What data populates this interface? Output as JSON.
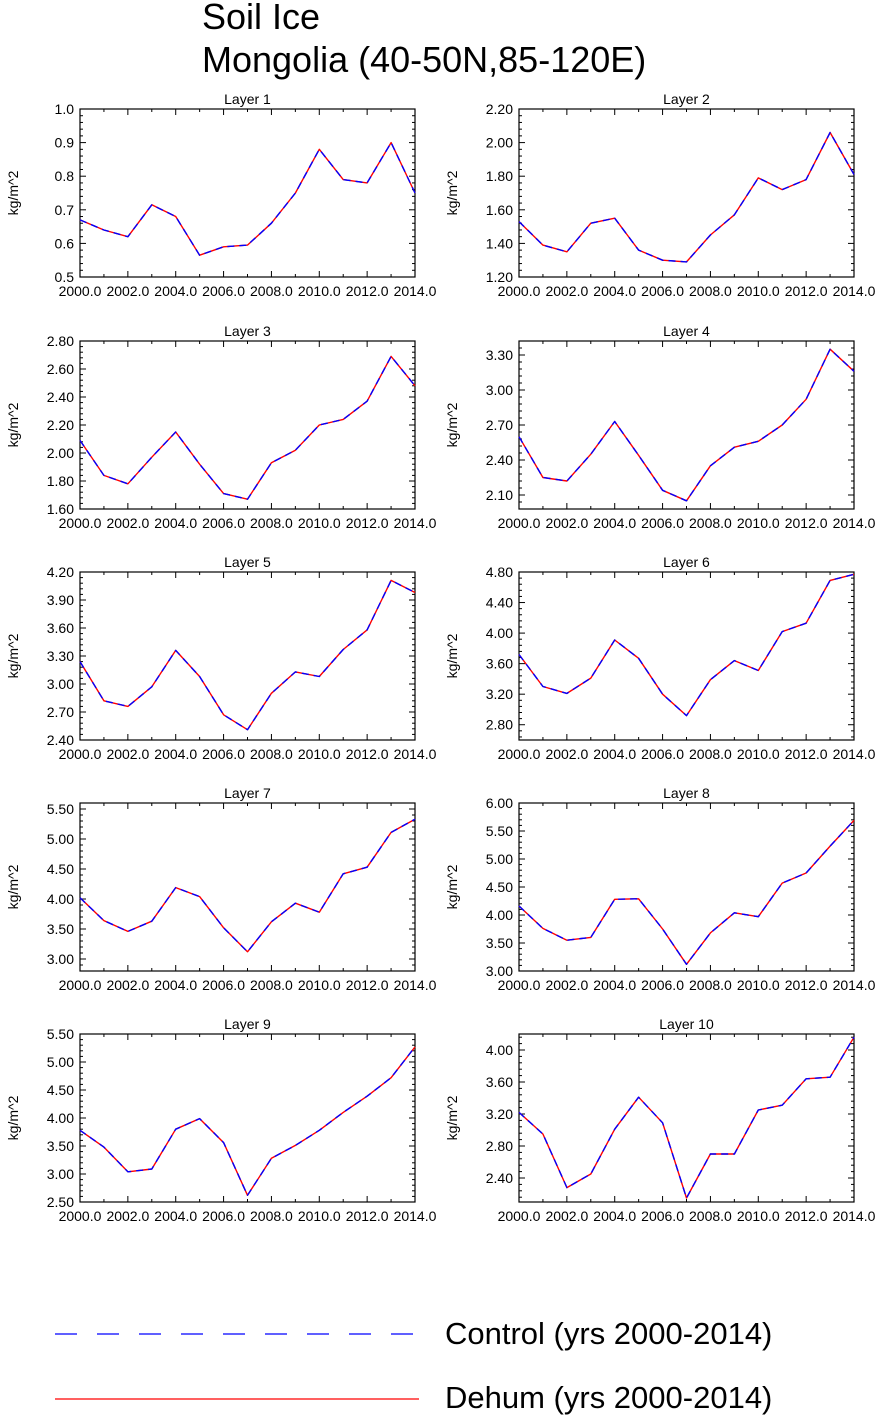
{
  "title": "Soil Ice",
  "subtitle": "Mongolia (40-50N,85-120E)",
  "legend": [
    {
      "label": "Control (yrs 2000-2014)",
      "color": "#0000ff",
      "style": "dashed"
    },
    {
      "label": "Dehum (yrs 2000-2014)",
      "color": "#ff0000",
      "style": "solid"
    }
  ],
  "chart_data": [
    {
      "type": "line",
      "title": "Layer 1",
      "ylabel": "kg/m^2",
      "x": [
        2000,
        2001,
        2002,
        2003,
        2004,
        2005,
        2006,
        2007,
        2008,
        2009,
        2010,
        2011,
        2012,
        2013,
        2014
      ],
      "xticks": [
        "2000.0",
        "2002.0",
        "2004.0",
        "2006.0",
        "2008.0",
        "2010.0",
        "2012.0",
        "2014.0"
      ],
      "ylim": [
        0.5,
        1.0
      ],
      "yticks": [
        "0.5",
        "0.6",
        "0.7",
        "0.8",
        "0.9",
        "1.0"
      ],
      "series": [
        {
          "name": "Control (yrs 2000-2014)",
          "values": [
            0.67,
            0.64,
            0.62,
            0.715,
            0.68,
            0.565,
            0.59,
            0.595,
            0.66,
            0.75,
            0.88,
            0.79,
            0.78,
            0.9,
            0.75
          ]
        },
        {
          "name": "Dehum (yrs 2000-2014)",
          "values": [
            0.67,
            0.64,
            0.62,
            0.715,
            0.68,
            0.565,
            0.59,
            0.595,
            0.66,
            0.75,
            0.88,
            0.79,
            0.78,
            0.9,
            0.75
          ]
        }
      ]
    },
    {
      "type": "line",
      "title": "Layer 2",
      "ylabel": "kg/m^2",
      "x": [
        2000,
        2001,
        2002,
        2003,
        2004,
        2005,
        2006,
        2007,
        2008,
        2009,
        2010,
        2011,
        2012,
        2013,
        2014
      ],
      "xticks": [
        "2000.0",
        "2002.0",
        "2004.0",
        "2006.0",
        "2008.0",
        "2010.0",
        "2012.0",
        "2014.0"
      ],
      "ylim": [
        1.2,
        2.2
      ],
      "yticks": [
        "1.20",
        "1.40",
        "1.60",
        "1.80",
        "2.00",
        "2.20"
      ],
      "series": [
        {
          "name": "Control (yrs 2000-2014)",
          "values": [
            1.53,
            1.39,
            1.35,
            1.52,
            1.55,
            1.36,
            1.3,
            1.29,
            1.45,
            1.57,
            1.79,
            1.72,
            1.78,
            2.06,
            1.81
          ]
        },
        {
          "name": "Dehum (yrs 2000-2014)",
          "values": [
            1.53,
            1.39,
            1.35,
            1.52,
            1.55,
            1.36,
            1.3,
            1.29,
            1.45,
            1.57,
            1.79,
            1.72,
            1.78,
            2.06,
            1.81
          ]
        }
      ]
    },
    {
      "type": "line",
      "title": "Layer 3",
      "ylabel": "kg/m^2",
      "x": [
        2000,
        2001,
        2002,
        2003,
        2004,
        2005,
        2006,
        2007,
        2008,
        2009,
        2010,
        2011,
        2012,
        2013,
        2014
      ],
      "xticks": [
        "2000.0",
        "2002.0",
        "2004.0",
        "2006.0",
        "2008.0",
        "2010.0",
        "2012.0",
        "2014.0"
      ],
      "ylim": [
        1.6,
        2.8
      ],
      "yticks": [
        "1.60",
        "1.80",
        "2.00",
        "2.20",
        "2.40",
        "2.60",
        "2.80"
      ],
      "series": [
        {
          "name": "Control (yrs 2000-2014)",
          "values": [
            2.09,
            1.84,
            1.78,
            1.97,
            2.15,
            1.92,
            1.71,
            1.67,
            1.93,
            2.02,
            2.2,
            2.24,
            2.37,
            2.69,
            2.48
          ]
        },
        {
          "name": "Dehum (yrs 2000-2014)",
          "values": [
            2.09,
            1.84,
            1.78,
            1.97,
            2.15,
            1.92,
            1.71,
            1.67,
            1.93,
            2.02,
            2.2,
            2.24,
            2.37,
            2.69,
            2.48
          ]
        }
      ]
    },
    {
      "type": "line",
      "title": "Layer 4",
      "ylabel": "kg/m^2",
      "x": [
        2000,
        2001,
        2002,
        2003,
        2004,
        2005,
        2006,
        2007,
        2008,
        2009,
        2010,
        2011,
        2012,
        2013,
        2014
      ],
      "xticks": [
        "2000.0",
        "2002.0",
        "2004.0",
        "2006.0",
        "2008.0",
        "2010.0",
        "2012.0",
        "2014.0"
      ],
      "ylim": [
        1.98,
        3.42
      ],
      "yticks": [
        "2.10",
        "2.40",
        "2.70",
        "3.00",
        "3.30"
      ],
      "series": [
        {
          "name": "Control (yrs 2000-2014)",
          "values": [
            2.6,
            2.25,
            2.22,
            2.45,
            2.73,
            2.44,
            2.14,
            2.05,
            2.35,
            2.51,
            2.56,
            2.7,
            2.92,
            3.35,
            3.16
          ]
        },
        {
          "name": "Dehum (yrs 2000-2014)",
          "values": [
            2.6,
            2.25,
            2.22,
            2.45,
            2.73,
            2.44,
            2.14,
            2.05,
            2.35,
            2.51,
            2.56,
            2.7,
            2.92,
            3.35,
            3.16
          ]
        }
      ]
    },
    {
      "type": "line",
      "title": "Layer 5",
      "ylabel": "kg/m^2",
      "x": [
        2000,
        2001,
        2002,
        2003,
        2004,
        2005,
        2006,
        2007,
        2008,
        2009,
        2010,
        2011,
        2012,
        2013,
        2014
      ],
      "xticks": [
        "2000.0",
        "2002.0",
        "2004.0",
        "2006.0",
        "2008.0",
        "2010.0",
        "2012.0",
        "2014.0"
      ],
      "ylim": [
        2.4,
        4.2
      ],
      "yticks": [
        "2.40",
        "2.70",
        "3.00",
        "3.30",
        "3.60",
        "3.90",
        "4.20"
      ],
      "series": [
        {
          "name": "Control (yrs 2000-2014)",
          "values": [
            3.24,
            2.82,
            2.76,
            2.97,
            3.36,
            3.08,
            2.67,
            2.51,
            2.9,
            3.13,
            3.08,
            3.37,
            3.58,
            4.11,
            3.98
          ]
        },
        {
          "name": "Dehum (yrs 2000-2014)",
          "values": [
            3.24,
            2.82,
            2.76,
            2.97,
            3.36,
            3.08,
            2.67,
            2.51,
            2.9,
            3.13,
            3.08,
            3.37,
            3.58,
            4.11,
            3.98
          ]
        }
      ]
    },
    {
      "type": "line",
      "title": "Layer 6",
      "ylabel": "kg/m^2",
      "x": [
        2000,
        2001,
        2002,
        2003,
        2004,
        2005,
        2006,
        2007,
        2008,
        2009,
        2010,
        2011,
        2012,
        2013,
        2014
      ],
      "xticks": [
        "2000.0",
        "2002.0",
        "2004.0",
        "2006.0",
        "2008.0",
        "2010.0",
        "2012.0",
        "2014.0"
      ],
      "ylim": [
        2.6,
        4.8
      ],
      "yticks": [
        "2.80",
        "3.20",
        "3.60",
        "4.00",
        "4.40",
        "4.80"
      ],
      "series": [
        {
          "name": "Control (yrs 2000-2014)",
          "values": [
            3.72,
            3.3,
            3.21,
            3.41,
            3.91,
            3.67,
            3.2,
            2.92,
            3.39,
            3.64,
            3.51,
            4.02,
            4.13,
            4.69,
            4.77
          ]
        },
        {
          "name": "Dehum (yrs 2000-2014)",
          "values": [
            3.72,
            3.3,
            3.21,
            3.41,
            3.91,
            3.67,
            3.2,
            2.92,
            3.39,
            3.64,
            3.51,
            4.02,
            4.13,
            4.69,
            4.77
          ]
        }
      ]
    },
    {
      "type": "line",
      "title": "Layer 7",
      "ylabel": "kg/m^2",
      "x": [
        2000,
        2001,
        2002,
        2003,
        2004,
        2005,
        2006,
        2007,
        2008,
        2009,
        2010,
        2011,
        2012,
        2013,
        2014
      ],
      "xticks": [
        "2000.0",
        "2002.0",
        "2004.0",
        "2006.0",
        "2008.0",
        "2010.0",
        "2012.0",
        "2014.0"
      ],
      "ylim": [
        2.8,
        5.6
      ],
      "yticks": [
        "3.00",
        "3.50",
        "4.00",
        "4.50",
        "5.00",
        "5.50"
      ],
      "series": [
        {
          "name": "Control (yrs 2000-2014)",
          "values": [
            4.02,
            3.64,
            3.46,
            3.63,
            4.19,
            4.04,
            3.52,
            3.12,
            3.62,
            3.93,
            3.78,
            4.42,
            4.53,
            5.11,
            5.33
          ]
        },
        {
          "name": "Dehum (yrs 2000-2014)",
          "values": [
            4.02,
            3.64,
            3.46,
            3.63,
            4.19,
            4.04,
            3.52,
            3.12,
            3.62,
            3.93,
            3.78,
            4.42,
            4.53,
            5.11,
            5.33
          ]
        }
      ]
    },
    {
      "type": "line",
      "title": "Layer 8",
      "ylabel": "kg/m^2",
      "x": [
        2000,
        2001,
        2002,
        2003,
        2004,
        2005,
        2006,
        2007,
        2008,
        2009,
        2010,
        2011,
        2012,
        2013,
        2014
      ],
      "xticks": [
        "2000.0",
        "2002.0",
        "2004.0",
        "2006.0",
        "2008.0",
        "2010.0",
        "2012.0",
        "2014.0"
      ],
      "ylim": [
        3.0,
        6.0
      ],
      "yticks": [
        "3.00",
        "3.50",
        "4.00",
        "4.50",
        "5.00",
        "5.50",
        "6.00"
      ],
      "series": [
        {
          "name": "Control (yrs 2000-2014)",
          "values": [
            4.16,
            3.76,
            3.55,
            3.6,
            4.28,
            4.29,
            3.75,
            3.12,
            3.68,
            4.04,
            3.97,
            4.57,
            4.75,
            5.23,
            5.69
          ]
        },
        {
          "name": "Dehum (yrs 2000-2014)",
          "values": [
            4.16,
            3.76,
            3.55,
            3.6,
            4.28,
            4.29,
            3.75,
            3.12,
            3.68,
            4.04,
            3.97,
            4.57,
            4.75,
            5.23,
            5.69
          ]
        }
      ]
    },
    {
      "type": "line",
      "title": "Layer 9",
      "ylabel": "kg/m^2",
      "x": [
        2000,
        2001,
        2002,
        2003,
        2004,
        2005,
        2006,
        2007,
        2008,
        2009,
        2010,
        2011,
        2012,
        2013,
        2014
      ],
      "xticks": [
        "2000.0",
        "2002.0",
        "2004.0",
        "2006.0",
        "2008.0",
        "2010.0",
        "2012.0",
        "2014.0"
      ],
      "ylim": [
        2.5,
        5.5
      ],
      "yticks": [
        "2.50",
        "3.00",
        "3.50",
        "4.00",
        "4.50",
        "5.00",
        "5.50"
      ],
      "series": [
        {
          "name": "Control (yrs 2000-2014)",
          "values": [
            3.78,
            3.48,
            3.04,
            3.09,
            3.8,
            3.99,
            3.56,
            2.62,
            3.28,
            3.51,
            3.78,
            4.1,
            4.39,
            4.72,
            5.27
          ]
        },
        {
          "name": "Dehum (yrs 2000-2014)",
          "values": [
            3.78,
            3.48,
            3.04,
            3.09,
            3.8,
            3.99,
            3.56,
            2.62,
            3.28,
            3.51,
            3.78,
            4.1,
            4.39,
            4.72,
            5.27
          ]
        }
      ]
    },
    {
      "type": "line",
      "title": "Layer 10",
      "ylabel": "kg/m^2",
      "x": [
        2000,
        2001,
        2002,
        2003,
        2004,
        2005,
        2006,
        2007,
        2008,
        2009,
        2010,
        2011,
        2012,
        2013,
        2014
      ],
      "xticks": [
        "2000.0",
        "2002.0",
        "2004.0",
        "2006.0",
        "2008.0",
        "2010.0",
        "2012.0",
        "2014.0"
      ],
      "ylim": [
        2.1,
        4.2
      ],
      "yticks": [
        "2.40",
        "2.80",
        "3.20",
        "3.60",
        "4.00"
      ],
      "series": [
        {
          "name": "Control (yrs 2000-2014)",
          "values": [
            3.22,
            2.95,
            2.28,
            2.45,
            3.01,
            3.41,
            3.09,
            2.15,
            2.7,
            2.7,
            3.25,
            3.31,
            3.64,
            3.66,
            4.16
          ]
        },
        {
          "name": "Dehum (yrs 2000-2014)",
          "values": [
            3.22,
            2.95,
            2.28,
            2.45,
            3.01,
            3.41,
            3.09,
            2.15,
            2.7,
            2.7,
            3.25,
            3.31,
            3.64,
            3.66,
            4.16
          ]
        }
      ]
    }
  ]
}
